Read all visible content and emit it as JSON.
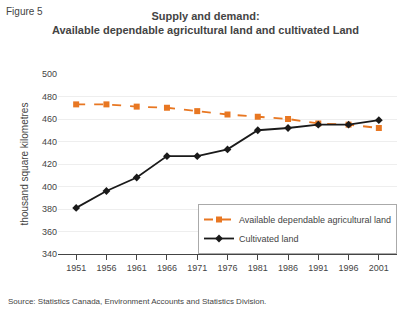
{
  "chart_data": {
    "type": "line",
    "title": "Supply and demand:",
    "subtitle": "Available dependable agricultural land and cultivated Land",
    "y_label": "thousand square kilometres",
    "annotations": [
      "Figure 5",
      "Source: Statistics Canada, Environment Accounts and Statistics Division."
    ],
    "x": [
      1951,
      1956,
      1961,
      1966,
      1971,
      1976,
      1981,
      1986,
      1991,
      1996,
      2001
    ],
    "series": [
      {
        "name": "Available dependable agricultural land",
        "color": "#E87722",
        "line_style": "dashed",
        "marker": "square",
        "values": [
          473,
          473,
          471,
          470,
          467,
          464,
          462,
          460,
          456,
          455,
          452
        ]
      },
      {
        "name": "Cultivated land",
        "color": "#1a1a1a",
        "line_style": "solid",
        "marker": "diamond",
        "values": [
          381,
          396,
          408,
          427,
          427,
          433,
          450,
          452,
          455,
          455,
          459
        ]
      }
    ],
    "xlim": [
      1948,
      2004
    ],
    "xticks": [
      1951,
      1956,
      1961,
      1966,
      1971,
      1976,
      1981,
      1986,
      1991,
      1996,
      2001
    ],
    "ylim": [
      340,
      500
    ],
    "yticks": [
      340,
      360,
      380,
      400,
      420,
      440,
      460,
      480,
      500
    ],
    "grid": "y",
    "legend": "lower right"
  }
}
